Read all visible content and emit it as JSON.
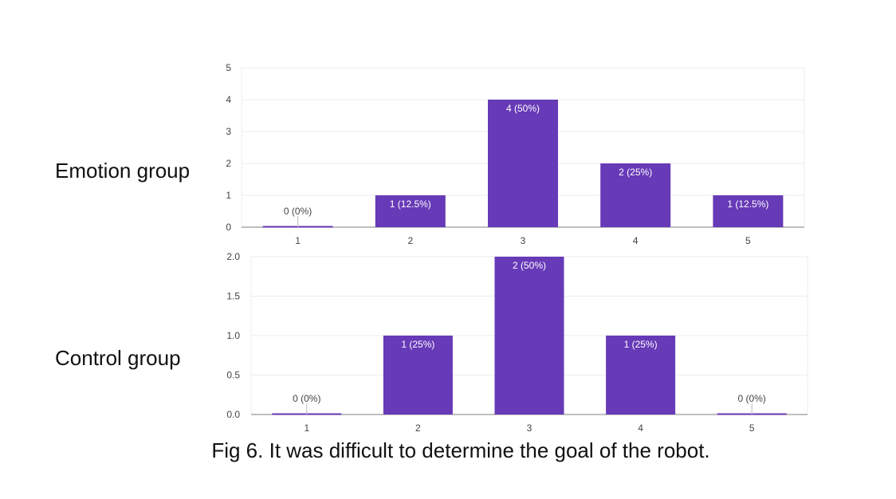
{
  "colors": {
    "bar": "#673ab7",
    "grid": "#ececec",
    "axis": "#999999",
    "tick_text": "#444444",
    "label_inside": "#ffffff",
    "label_outside": "#444444"
  },
  "chart_data": [
    {
      "type": "bar",
      "title": "",
      "group_label": "Emotion group",
      "categories": [
        "1",
        "2",
        "3",
        "4",
        "5"
      ],
      "values": [
        0,
        1,
        4,
        2,
        1
      ],
      "data_labels": [
        "0 (0%)",
        "1 (12.5%)",
        "4 (50%)",
        "2 (25%)",
        "1 (12.5%)"
      ],
      "yticks": [
        "0",
        "1",
        "2",
        "3",
        "4",
        "5"
      ],
      "ylim": [
        0,
        5
      ],
      "grid": true,
      "xlabel": "",
      "ylabel": ""
    },
    {
      "type": "bar",
      "title": "",
      "group_label": "Control group",
      "categories": [
        "1",
        "2",
        "3",
        "4",
        "5"
      ],
      "values": [
        0,
        1,
        2,
        1,
        0
      ],
      "data_labels": [
        "0 (0%)",
        "1 (25%)",
        "2 (50%)",
        "1 (25%)",
        "0 (0%)"
      ],
      "yticks": [
        "0.0",
        "0.5",
        "1.0",
        "1.5",
        "2.0"
      ],
      "ylim": [
        0,
        2
      ],
      "grid": true,
      "xlabel": "",
      "ylabel": ""
    }
  ],
  "caption": "Fig 6. It was difficult to determine the goal of the robot."
}
